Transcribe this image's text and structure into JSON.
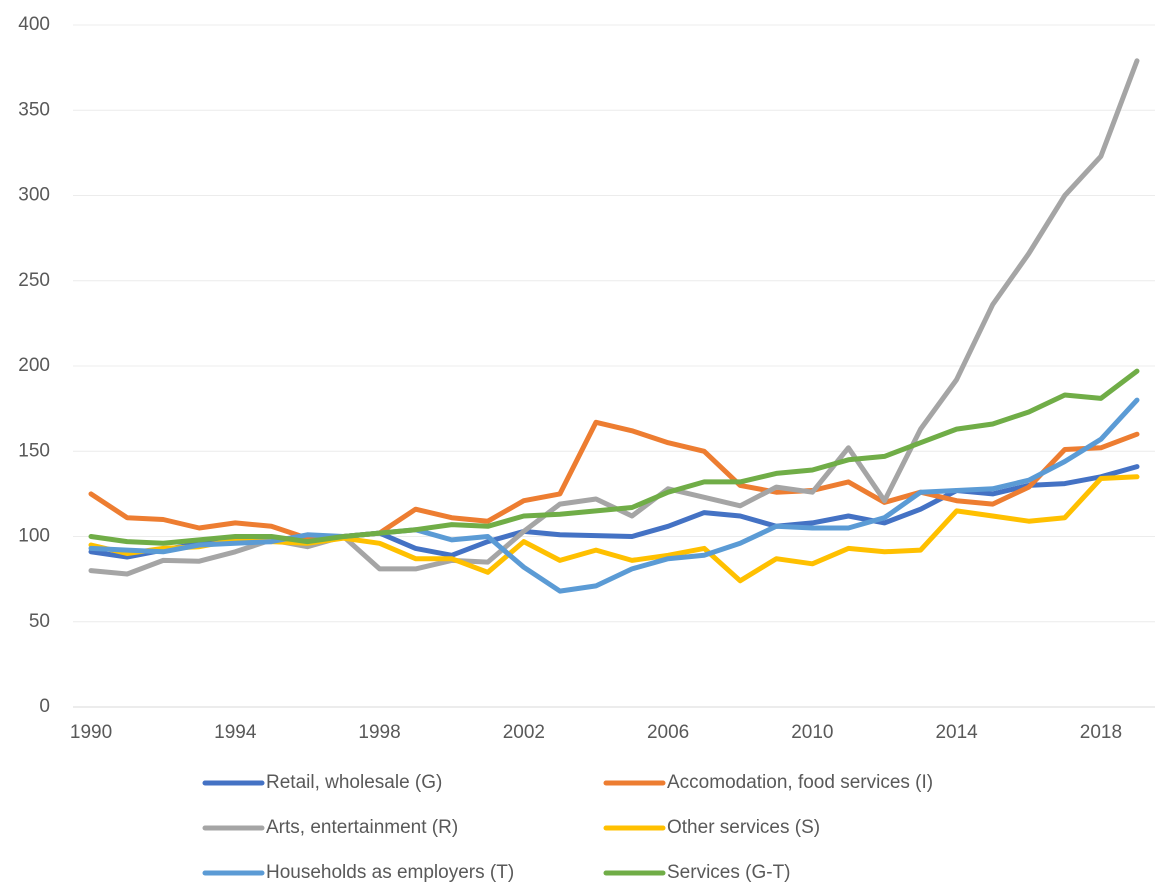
{
  "chart_data": {
    "type": "line",
    "x": [
      1990,
      1991,
      1992,
      1993,
      1994,
      1995,
      1996,
      1997,
      1998,
      1999,
      2000,
      2001,
      2002,
      2003,
      2004,
      2005,
      2006,
      2007,
      2008,
      2009,
      2010,
      2011,
      2012,
      2013,
      2014,
      2015,
      2016,
      2017,
      2018,
      2019
    ],
    "xlim": [
      1989.5,
      2019.5
    ],
    "xticks": [
      1990,
      1994,
      1998,
      2002,
      2006,
      2010,
      2014,
      2018
    ],
    "ylim": [
      0,
      400
    ],
    "yticks": [
      0,
      50,
      100,
      150,
      200,
      250,
      300,
      350,
      400
    ],
    "grid": true,
    "legend": "bottom",
    "series": [
      {
        "name": "Retail, wholesale (G)",
        "color": "#4472c4",
        "values": [
          91,
          88,
          92,
          96,
          97,
          97,
          99,
          100,
          102,
          93,
          89,
          97,
          103,
          101,
          100.5,
          100,
          106,
          114,
          112,
          106,
          108,
          112,
          108,
          116,
          127,
          125,
          130,
          131,
          135,
          141
        ]
      },
      {
        "name": "Accomodation, food services (I)",
        "color": "#ed7d31",
        "values": [
          125,
          111,
          110,
          105,
          108,
          106,
          99,
          100,
          102,
          116,
          111,
          109,
          121,
          125,
          167,
          162,
          155,
          150,
          130,
          126,
          127,
          132,
          120,
          126,
          121,
          119,
          129,
          151,
          152,
          160
        ]
      },
      {
        "name": "Arts, entertainment (R)",
        "color": "#a5a5a5",
        "values": [
          80,
          78,
          86,
          85.5,
          91,
          98,
          94,
          100,
          81,
          81,
          86,
          85,
          103,
          119,
          122,
          112,
          128,
          123,
          118,
          129,
          126,
          152,
          121,
          163,
          192,
          236,
          266,
          300,
          323,
          379
        ]
      },
      {
        "name": "Other services (S)",
        "color": "#ffc000",
        "values": [
          95,
          90,
          93,
          94,
          98,
          97,
          96,
          99,
          96,
          87,
          87,
          79,
          97,
          86,
          92,
          86,
          89,
          93,
          74,
          87,
          84,
          93,
          91,
          92,
          115,
          112,
          109,
          111,
          134,
          135
        ]
      },
      {
        "name": "Households as employers (T)",
        "color": "#5b9bd5",
        "values": [
          93,
          92,
          91,
          95,
          96,
          97,
          101,
          100,
          102,
          104,
          98,
          100,
          82,
          68,
          71,
          81,
          87,
          89,
          96,
          106,
          105,
          105,
          111,
          126,
          127,
          128,
          133,
          144,
          157,
          180
        ]
      },
      {
        "name": "Services (G-T)",
        "color": "#70ad47",
        "values": [
          100,
          97,
          96,
          98,
          100,
          100,
          97,
          100,
          102,
          104,
          107,
          106,
          112,
          113,
          115,
          117,
          126,
          132,
          132,
          137,
          139,
          145,
          147,
          155,
          163,
          166,
          173,
          183,
          181,
          197
        ]
      }
    ]
  }
}
